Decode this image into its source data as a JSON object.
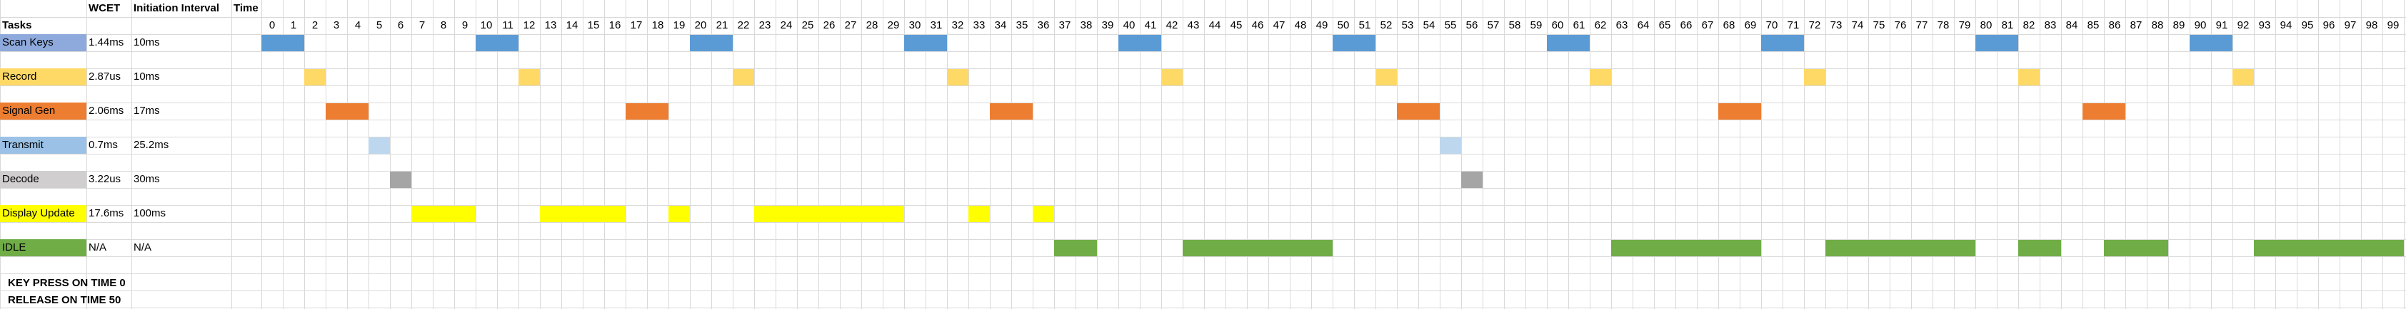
{
  "headers": {
    "tasks": "Tasks",
    "wcet": "WCET",
    "initiation_interval": "Initiation Interval",
    "time": "Time"
  },
  "time_ticks": [
    0,
    1,
    2,
    3,
    4,
    5,
    6,
    7,
    8,
    9,
    10,
    11,
    12,
    13,
    14,
    15,
    16,
    17,
    18,
    19,
    20,
    21,
    22,
    23,
    24,
    25,
    26,
    27,
    28,
    29,
    30,
    31,
    32,
    33,
    34,
    35,
    36,
    37,
    38,
    39,
    40,
    41,
    42,
    43,
    44,
    45,
    46,
    47,
    48,
    49,
    50,
    51,
    52,
    53,
    54,
    55,
    56,
    57,
    58,
    59,
    60,
    61,
    62,
    63,
    64,
    65,
    66,
    67,
    68,
    69,
    70,
    71,
    72,
    73,
    74,
    75,
    76,
    77,
    78,
    79,
    80,
    81,
    82,
    83,
    84,
    85,
    86,
    87,
    88,
    89,
    90,
    91,
    92,
    93,
    94,
    95,
    96,
    97,
    98,
    99
  ],
  "tasks": [
    {
      "name": "Scan Keys",
      "wcet": "1.44ms",
      "interval": "10ms",
      "color": "#5b9bd5",
      "spans": [
        [
          0,
          1
        ],
        [
          10,
          11
        ],
        [
          20,
          21
        ],
        [
          30,
          31
        ],
        [
          40,
          41
        ],
        [
          50,
          51
        ],
        [
          60,
          61
        ],
        [
          70,
          71
        ],
        [
          80,
          81
        ],
        [
          90,
          91
        ]
      ]
    },
    {
      "name": "Record",
      "wcet": "2.87us",
      "interval": "10ms",
      "color": "#ffd966",
      "spans": [
        [
          2,
          2
        ],
        [
          12,
          12
        ],
        [
          22,
          22
        ],
        [
          32,
          32
        ],
        [
          42,
          42
        ],
        [
          52,
          52
        ],
        [
          62,
          62
        ],
        [
          72,
          72
        ],
        [
          82,
          82
        ],
        [
          92,
          92
        ]
      ]
    },
    {
      "name": "Signal Gen",
      "wcet": "2.06ms",
      "interval": "17ms",
      "color": "#ed7d31",
      "spans": [
        [
          3,
          4
        ],
        [
          17,
          18
        ],
        [
          34,
          35
        ],
        [
          53,
          54
        ],
        [
          68,
          69
        ],
        [
          85,
          86
        ]
      ]
    },
    {
      "name": "Transmit",
      "wcet": "0.7ms",
      "interval": "25.2ms",
      "color": "#bdd7ee",
      "spans": [
        [
          5,
          5
        ],
        [
          55,
          55
        ]
      ]
    },
    {
      "name": "Decode",
      "wcet": "3.22us",
      "interval": "30ms",
      "color": "#a5a5a5",
      "spans": [
        [
          6,
          6
        ],
        [
          56,
          56
        ]
      ]
    },
    {
      "name": "Display Update",
      "wcet": "17.6ms",
      "interval": "100ms",
      "color": "#ffff00",
      "spans": [
        [
          7,
          9
        ],
        [
          13,
          16
        ],
        [
          19,
          19
        ],
        [
          23,
          29
        ],
        [
          33,
          33
        ],
        [
          36,
          36
        ]
      ]
    },
    {
      "name": "IDLE",
      "wcet": "N/A",
      "interval": "N/A",
      "color": "#70ad47",
      "spans": [
        [
          37,
          38
        ],
        [
          43,
          49
        ],
        [
          63,
          69
        ],
        [
          73,
          79
        ],
        [
          82,
          83
        ],
        [
          86,
          88
        ],
        [
          93,
          99
        ]
      ]
    }
  ],
  "task_label_colors": [
    "#8ea9db",
    "#ffd966",
    "#ed7d31",
    "#9bc2e6",
    "#d0cece",
    "#ffff00",
    "#70ad47"
  ],
  "notes": {
    "key_press": "KEY PRESS ON TIME 0",
    "release": "RELEASE ON TIME 50"
  }
}
